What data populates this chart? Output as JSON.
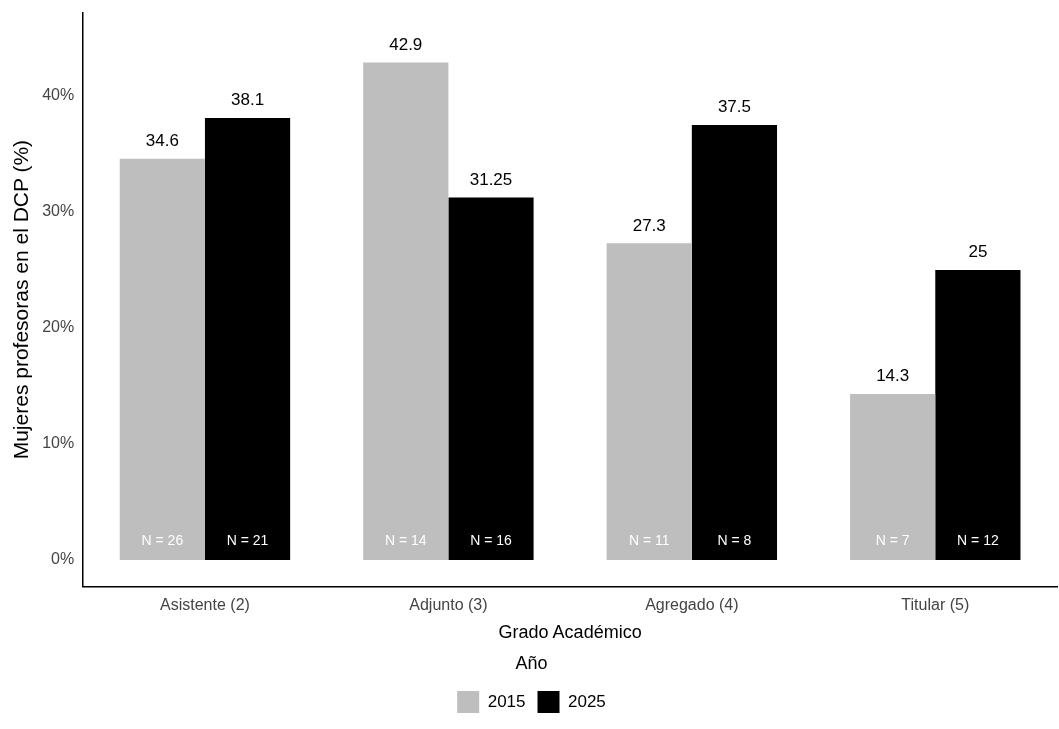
{
  "chart_data": {
    "type": "bar",
    "xlabel": "Grado Académico",
    "ylabel": "Mujeres profesoras en el DCP (%)",
    "legend_title": "Año",
    "categories": [
      "Asistente (2)",
      "Adjunto (3)",
      "Agregado (4)",
      "Titular (5)"
    ],
    "series": [
      {
        "name": "2015",
        "color": "#bebebe",
        "values": [
          34.6,
          42.9,
          27.3,
          14.3
        ]
      },
      {
        "name": "2025",
        "color": "#000000",
        "values": [
          38.1,
          31.25,
          37.5,
          25
        ]
      }
    ],
    "ylim": [
      -2.3,
      47.2
    ],
    "yticks": [
      {
        "value": 0,
        "label": "0%"
      },
      {
        "value": 10,
        "label": "10%"
      },
      {
        "value": 20,
        "label": "20%"
      },
      {
        "value": 30,
        "label": "30%"
      },
      {
        "value": 40,
        "label": "40%"
      }
    ],
    "data_labels": true,
    "grid": false,
    "legend": "bottom",
    "annotations": [
      {
        "text": "N = 26",
        "x": "Asistente (2)",
        "y": 0
      },
      {
        "text": "N = 21",
        "x": "Asistente (2)",
        "y": 0
      },
      {
        "text": "N = 14",
        "x": "Adjunto (3)",
        "y": 0
      },
      {
        "text": "N = 16",
        "x": "Adjunto (3)",
        "y": 0
      },
      {
        "text": "N = 11",
        "x": "Agregado (4)",
        "y": 0
      },
      {
        "text": "N = 8",
        "x": "Agregado (4)",
        "y": 0
      },
      {
        "text": "N = 7",
        "x": "Titular (5)",
        "y": 0
      },
      {
        "text": "N = 12",
        "x": "Titular (5)",
        "y": 0
      }
    ]
  }
}
